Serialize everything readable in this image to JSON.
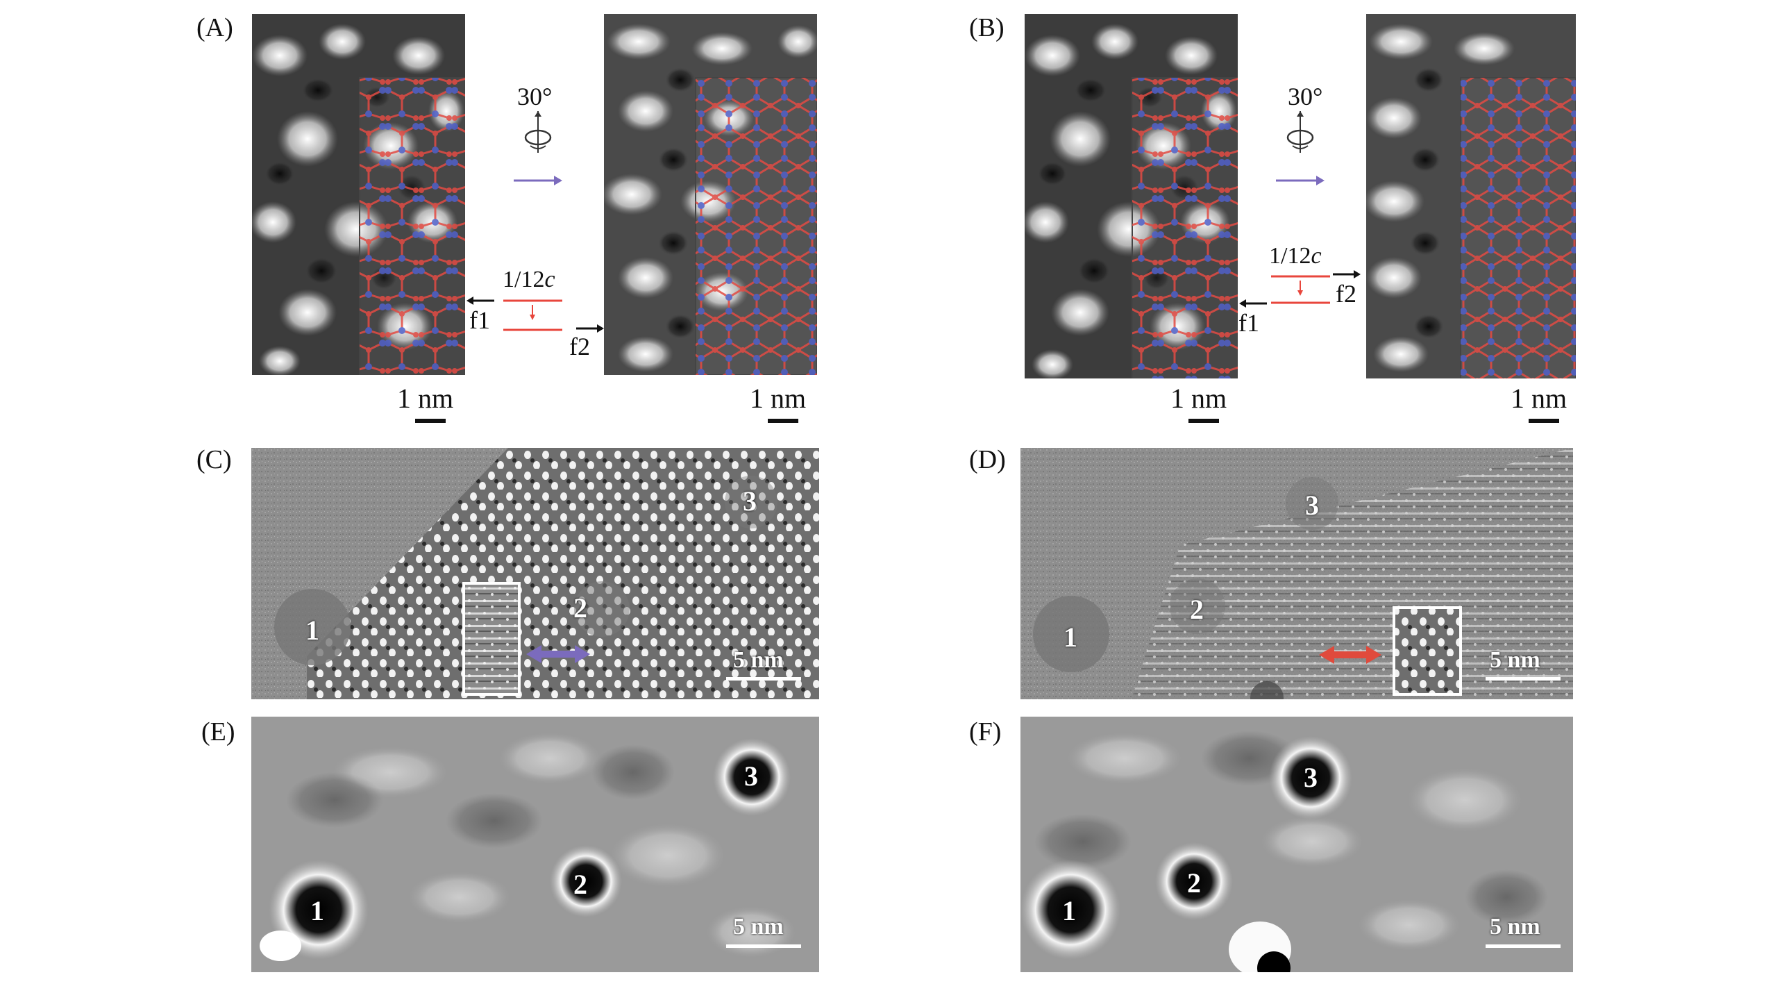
{
  "panels": {
    "A": {
      "label": "(A)"
    },
    "B": {
      "label": "(B)"
    },
    "C": {
      "label": "(C)"
    },
    "D": {
      "label": "(D)"
    },
    "E": {
      "label": "(E)"
    },
    "F": {
      "label": "(F)"
    }
  },
  "scale_bar_1nm": "1 nm",
  "scale_bar_5nm": "5 nm",
  "rotation": "30°",
  "shift_prefix": "1/12",
  "shift_c": "c",
  "face_1": "f1",
  "face_2": "f2",
  "region_labels": [
    "1",
    "2",
    "3"
  ],
  "colors": {
    "arrow_violet": "#7b6bbd",
    "arrow_red": "#e04a3c",
    "line_red": "#e8463c",
    "atom_blue": "#5060c8",
    "atom_red": "#e24b43"
  }
}
